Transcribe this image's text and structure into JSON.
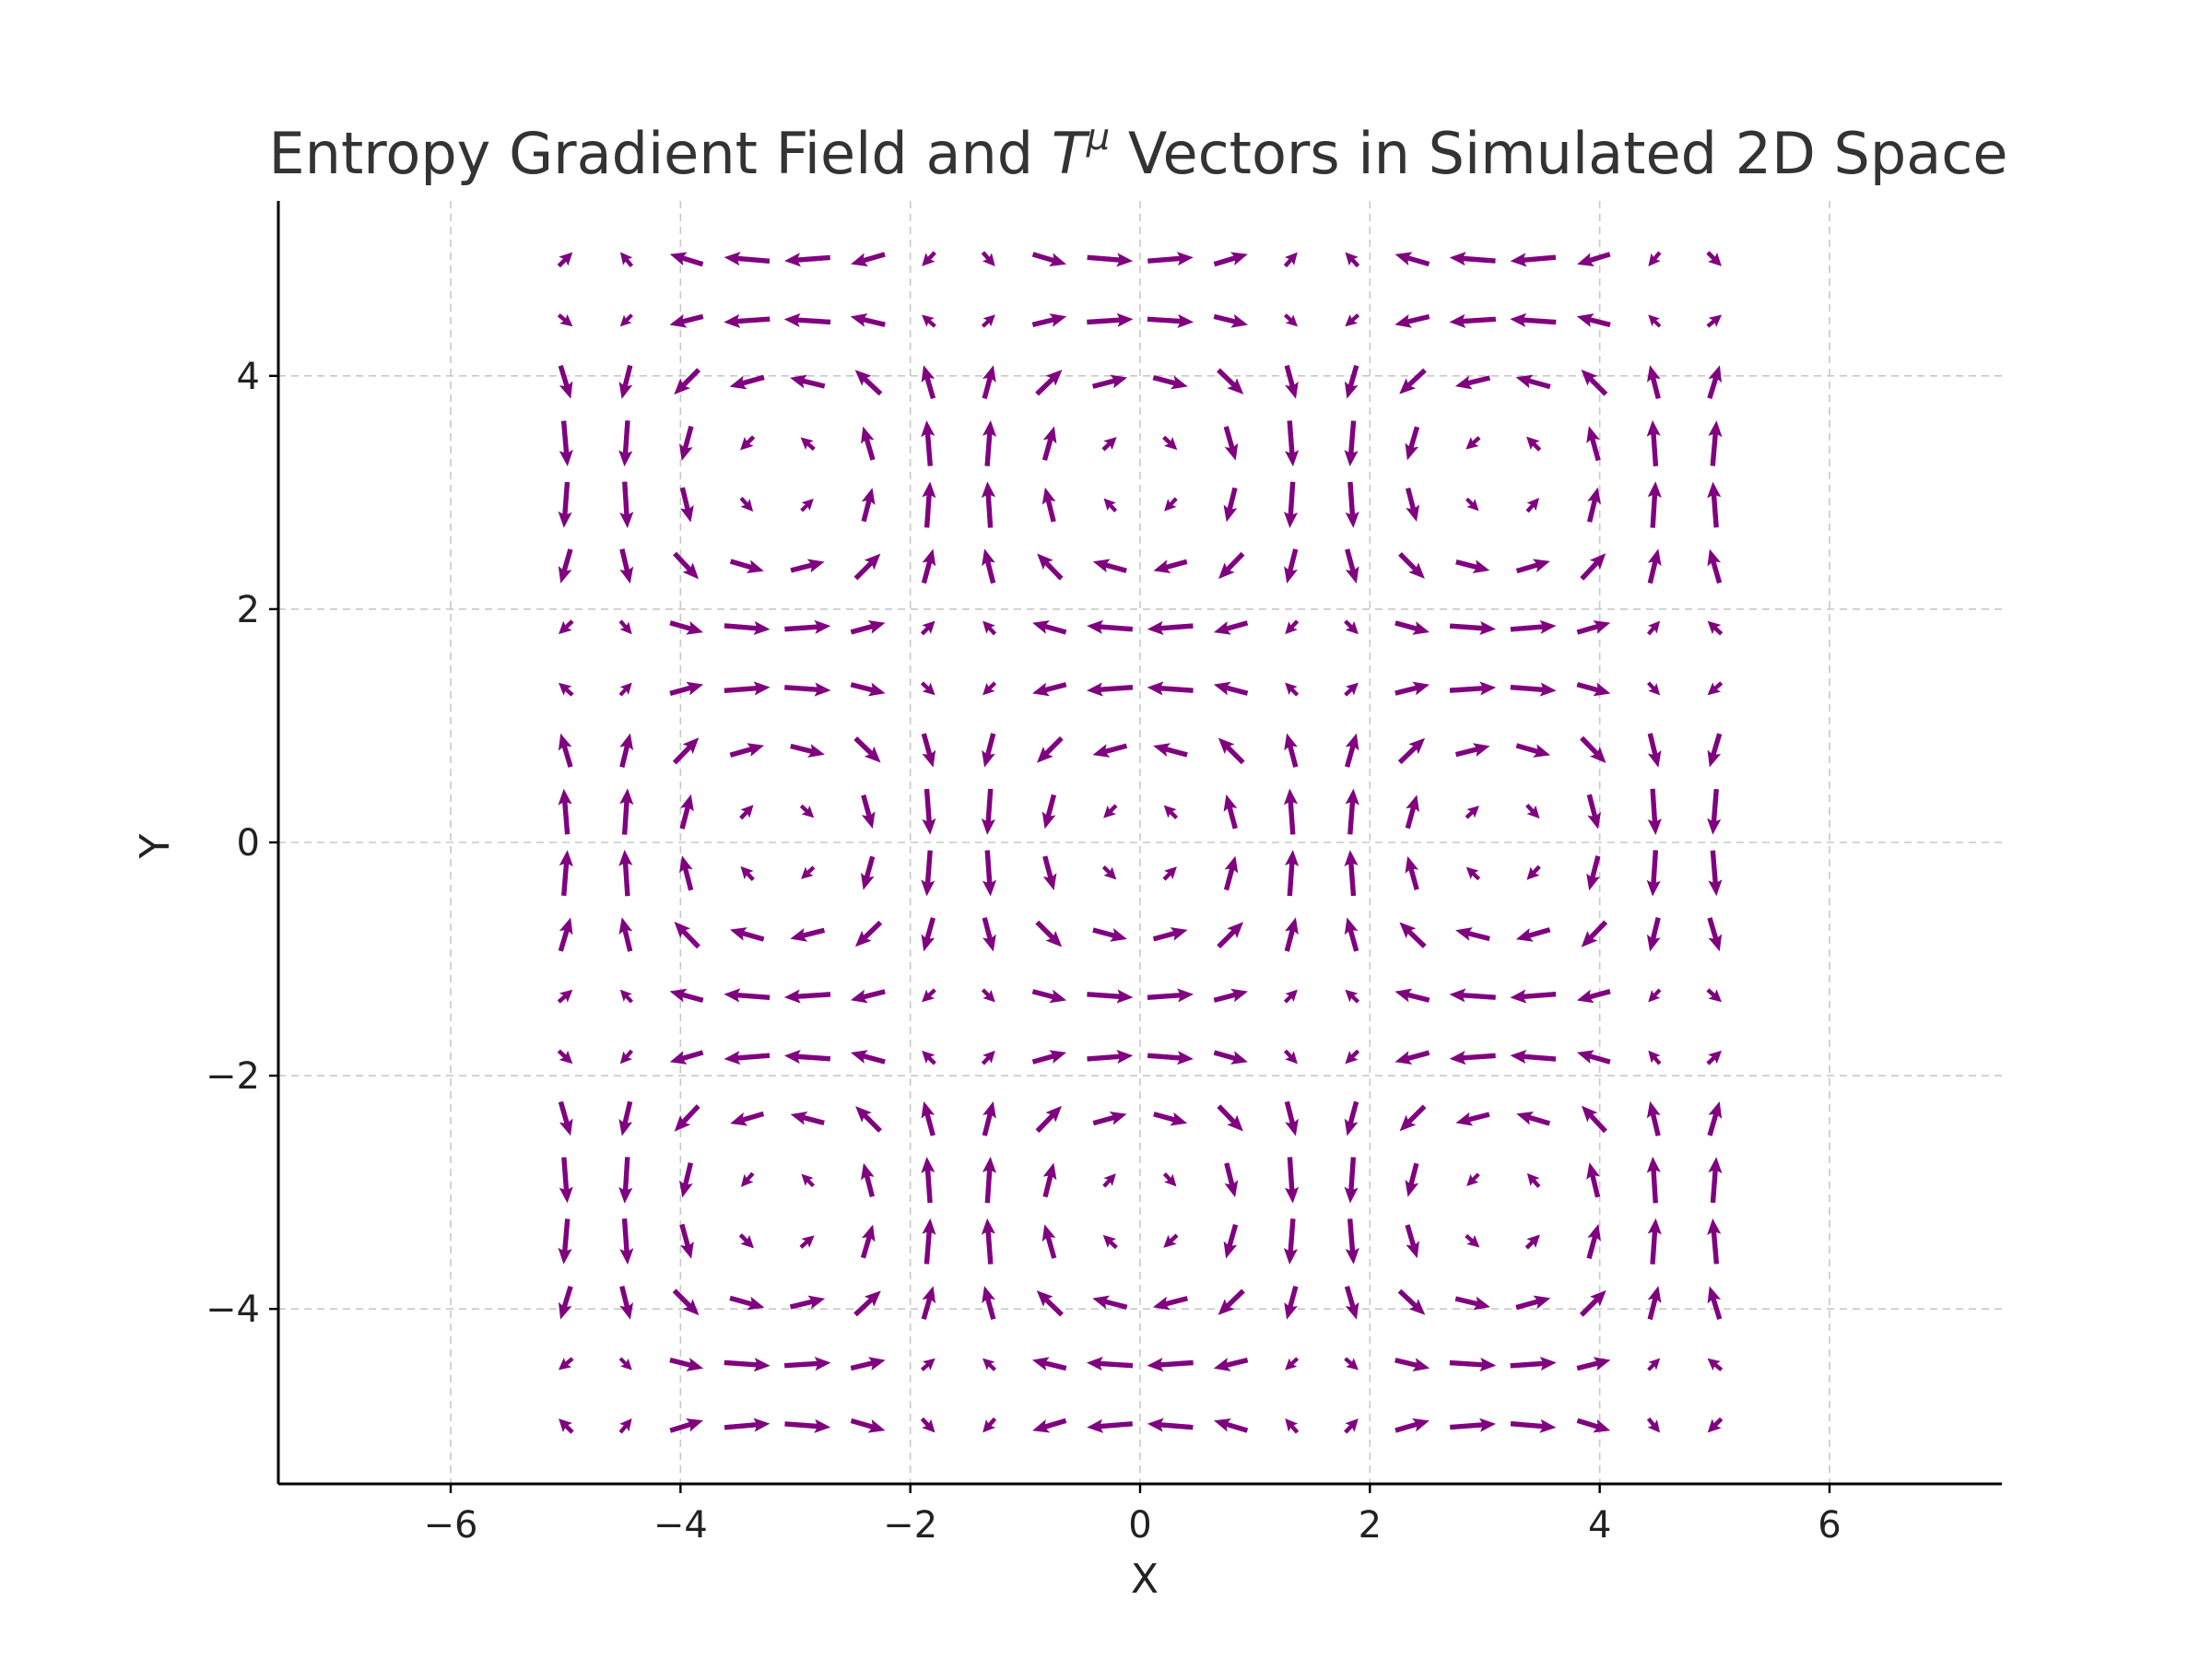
{
  "chart_data": {
    "type": "quiver",
    "title": {
      "prefix": "Entropy Gradient Field and ",
      "symbol": "T",
      "superscript": "μ",
      "suffix": " Vectors in Simulated 2D Space"
    },
    "xlabel": "X",
    "ylabel": "Y",
    "xlim": [
      -7.5,
      7.5
    ],
    "ylim": [
      -5.5,
      5.5
    ],
    "xticks": [
      -6,
      -4,
      -2,
      0,
      2,
      4,
      6
    ],
    "yticks": [
      -4,
      -2,
      0,
      2,
      4
    ],
    "xtick_labels": [
      "−6",
      "−4",
      "−2",
      "0",
      "2",
      "4",
      "6"
    ],
    "ytick_labels": [
      "−4",
      "−2",
      "0",
      "2",
      "4"
    ],
    "grid": true,
    "arrow_color": "#800080",
    "field": {
      "x_range": [
        -5,
        5
      ],
      "y_range": [
        -5,
        5
      ],
      "grid_size": 20,
      "u_formula": "-cos(x) * sin(y)",
      "v_formula": "sin(x) * cos(y)"
    }
  }
}
